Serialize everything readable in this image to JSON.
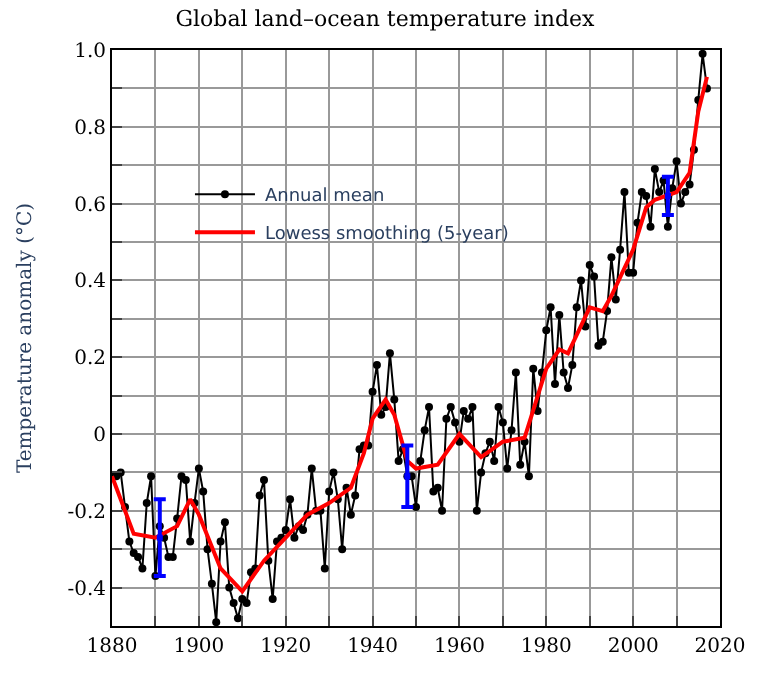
{
  "chart_data": {
    "type": "line",
    "title": "Global land–ocean temperature index",
    "ylabel": "Temperature anomaly (°C)",
    "xlim": [
      1880,
      2020
    ],
    "xticks": [
      1880,
      {
        "value": 1890,
        "label": null
      },
      1900,
      {
        "value": 1910,
        "label": null
      },
      1920,
      {
        "value": 1930,
        "label": null
      },
      1940,
      {
        "value": 1950,
        "label": null
      },
      1960,
      {
        "value": 1970,
        "label": null
      },
      1980,
      {
        "value": 1990,
        "label": null
      },
      2000,
      {
        "value": 2010,
        "label": null
      },
      2020
    ],
    "ylim": [
      -0.5,
      1.0
    ],
    "yticks": [
      {
        "value": -0.5,
        "label": null
      },
      -0.4,
      {
        "value": -0.3,
        "label": null
      },
      -0.2,
      {
        "value": -0.1,
        "label": null
      },
      0,
      {
        "value": 0.1,
        "label": null
      },
      0.2,
      {
        "value": 0.3,
        "label": null
      },
      0.4,
      {
        "value": 0.5,
        "label": null
      },
      0.6,
      {
        "value": 0.7,
        "label": null
      },
      0.8,
      {
        "value": 0.9,
        "label": null
      },
      {
        "value": 1.0,
        "label": "1.0"
      }
    ],
    "grid": true,
    "legend": "top left",
    "series": [
      {
        "name": "Annual mean",
        "color": "#000000",
        "marker": "circle",
        "x": [
          1880,
          1881,
          1882,
          1883,
          1884,
          1885,
          1886,
          1887,
          1888,
          1889,
          1890,
          1891,
          1892,
          1893,
          1894,
          1895,
          1896,
          1897,
          1898,
          1899,
          1900,
          1901,
          1902,
          1903,
          1904,
          1905,
          1906,
          1907,
          1908,
          1909,
          1910,
          1911,
          1912,
          1913,
          1914,
          1915,
          1916,
          1917,
          1918,
          1919,
          1920,
          1921,
          1922,
          1923,
          1924,
          1925,
          1926,
          1927,
          1928,
          1929,
          1930,
          1931,
          1932,
          1933,
          1934,
          1935,
          1936,
          1937,
          1938,
          1939,
          1940,
          1941,
          1942,
          1943,
          1944,
          1945,
          1946,
          1947,
          1948,
          1949,
          1950,
          1951,
          1952,
          1953,
          1954,
          1955,
          1956,
          1957,
          1958,
          1959,
          1960,
          1961,
          1962,
          1963,
          1964,
          1965,
          1966,
          1967,
          1968,
          1969,
          1970,
          1971,
          1972,
          1973,
          1974,
          1975,
          1976,
          1977,
          1978,
          1979,
          1980,
          1981,
          1982,
          1983,
          1984,
          1985,
          1986,
          1987,
          1988,
          1989,
          1990,
          1991,
          1992,
          1993,
          1994,
          1995,
          1996,
          1997,
          1998,
          1999,
          2000,
          2001,
          2002,
          2003,
          2004,
          2005,
          2006,
          2007,
          2008,
          2009,
          2010,
          2011,
          2012,
          2013,
          2014,
          2015,
          2016,
          2017
        ],
        "values": [
          -0.11,
          -0.11,
          -0.1,
          -0.19,
          -0.28,
          -0.31,
          -0.32,
          -0.35,
          -0.18,
          -0.11,
          -0.37,
          -0.24,
          -0.27,
          -0.32,
          -0.32,
          -0.22,
          -0.11,
          -0.12,
          -0.28,
          -0.18,
          -0.09,
          -0.15,
          -0.3,
          -0.39,
          -0.49,
          -0.28,
          -0.23,
          -0.4,
          -0.44,
          -0.48,
          -0.43,
          -0.44,
          -0.36,
          -0.35,
          -0.16,
          -0.12,
          -0.33,
          -0.43,
          -0.28,
          -0.27,
          -0.25,
          -0.17,
          -0.27,
          -0.24,
          -0.25,
          -0.21,
          -0.09,
          -0.2,
          -0.2,
          -0.35,
          -0.15,
          -0.1,
          -0.17,
          -0.3,
          -0.14,
          -0.21,
          -0.16,
          -0.04,
          -0.03,
          -0.03,
          0.11,
          0.18,
          0.05,
          0.07,
          0.21,
          0.09,
          -0.07,
          -0.04,
          -0.11,
          -0.11,
          -0.19,
          -0.07,
          0.01,
          0.07,
          -0.15,
          -0.14,
          -0.2,
          0.04,
          0.07,
          0.03,
          -0.02,
          0.06,
          0.04,
          0.07,
          -0.2,
          -0.1,
          -0.05,
          -0.02,
          -0.07,
          0.07,
          0.03,
          -0.09,
          0.01,
          0.16,
          -0.08,
          -0.02,
          -0.11,
          0.17,
          0.06,
          0.16,
          0.27,
          0.33,
          0.13,
          0.31,
          0.16,
          0.12,
          0.18,
          0.33,
          0.4,
          0.28,
          0.44,
          0.41,
          0.23,
          0.24,
          0.32,
          0.46,
          0.35,
          0.48,
          0.63,
          0.42,
          0.42,
          0.55,
          0.63,
          0.62,
          0.54,
          0.69,
          0.63,
          0.66,
          0.54,
          0.64,
          0.71,
          0.6,
          0.63,
          0.65,
          0.74,
          0.87,
          0.99,
          0.9
        ]
      },
      {
        "name": "Lowess smoothing (5-year)",
        "color": "#ff0000",
        "marker": "none",
        "x": [
          1880,
          1885,
          1890,
          1895,
          1898,
          1900,
          1905,
          1910,
          1915,
          1920,
          1925,
          1930,
          1935,
          1938,
          1940,
          1943,
          1945,
          1948,
          1950,
          1955,
          1960,
          1965,
          1970,
          1975,
          1980,
          1983,
          1985,
          1990,
          1993,
          1995,
          2000,
          2003,
          2005,
          2010,
          2013,
          2015,
          2017
        ],
        "values": [
          -0.11,
          -0.26,
          -0.27,
          -0.24,
          -0.17,
          -0.21,
          -0.35,
          -0.41,
          -0.33,
          -0.27,
          -0.21,
          -0.18,
          -0.14,
          -0.05,
          0.04,
          0.09,
          0.05,
          -0.07,
          -0.09,
          -0.08,
          0.0,
          -0.06,
          -0.02,
          -0.01,
          0.17,
          0.22,
          0.21,
          0.33,
          0.32,
          0.36,
          0.48,
          0.59,
          0.61,
          0.63,
          0.68,
          0.84,
          0.93
        ]
      },
      {
        "type": "scatter",
        "color": "#0000ff",
        "marker": "square",
        "x": [
          1891,
          1948,
          2008
        ],
        "values": [
          -0.27,
          -0.11,
          0.62
        ],
        "errors": [
          0.1,
          0.08,
          0.05
        ]
      }
    ]
  }
}
